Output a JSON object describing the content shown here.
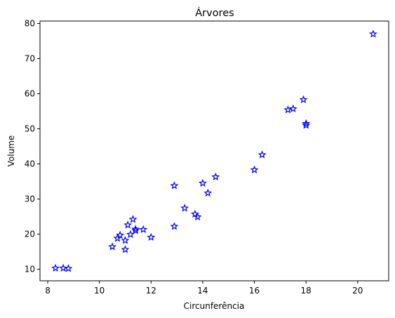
{
  "chart_data": {
    "type": "scatter",
    "title": "Árvores",
    "xlabel": "Circunferência",
    "ylabel": "Volume",
    "xlim": [
      7.7,
      21.2
    ],
    "ylim": [
      6.7,
      80.7
    ],
    "xticks": [
      8,
      10,
      12,
      14,
      16,
      18,
      20
    ],
    "yticks": [
      10,
      20,
      30,
      40,
      50,
      60,
      70,
      80
    ],
    "grid": false,
    "marker": "star",
    "marker_color": "#0000ff",
    "series": [
      {
        "x": [
          8.3,
          8.6,
          8.8,
          10.5,
          10.7,
          10.8,
          11.0,
          11.0,
          11.1,
          11.2,
          11.3,
          11.4,
          11.4,
          11.7,
          12.0,
          12.9,
          12.9,
          13.3,
          13.7,
          13.8,
          14.0,
          14.2,
          14.5,
          16.0,
          16.3,
          17.3,
          17.5,
          17.9,
          18.0,
          18.0,
          20.6
        ],
        "y": [
          10.3,
          10.3,
          10.2,
          16.4,
          18.8,
          19.7,
          15.6,
          18.2,
          22.6,
          19.9,
          24.2,
          21.0,
          21.4,
          21.3,
          19.1,
          22.2,
          33.8,
          27.4,
          25.7,
          24.9,
          34.5,
          31.7,
          36.3,
          38.3,
          42.6,
          55.4,
          55.7,
          58.3,
          51.5,
          51.0,
          77.0
        ]
      }
    ]
  }
}
